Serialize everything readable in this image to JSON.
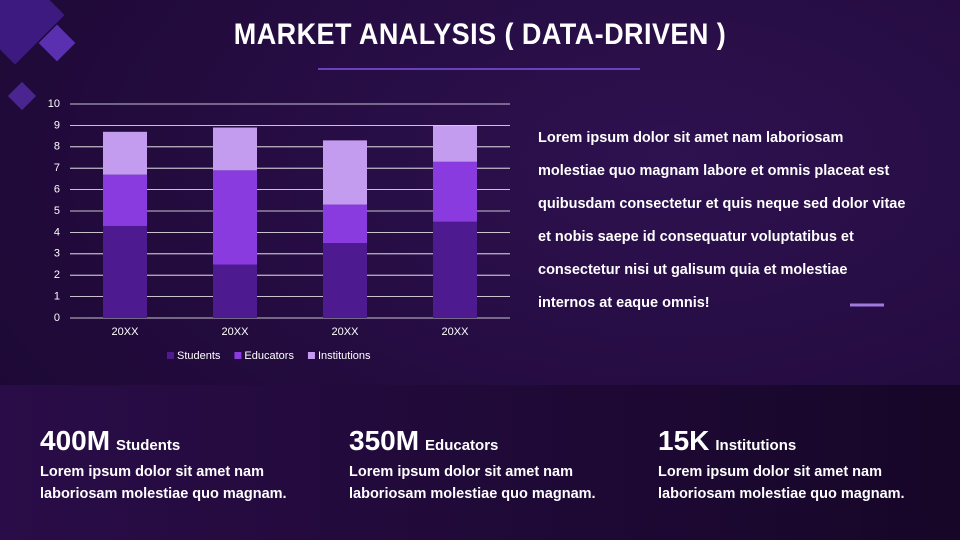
{
  "header": {
    "title": "MARKET ANALYSIS ( DATA-DRIVEN )"
  },
  "chart_data": {
    "type": "stacked_bar",
    "categories": [
      "20XX",
      "20XX",
      "20XX",
      "20XX"
    ],
    "series": [
      {
        "name": "Students",
        "color": "#4e1a8f",
        "values": [
          4.3,
          2.5,
          3.5,
          4.5
        ]
      },
      {
        "name": "Educators",
        "color": "#8a3be0",
        "values": [
          2.4,
          4.4,
          1.8,
          2.8
        ]
      },
      {
        "name": "Institutions",
        "color": "#c39cf0",
        "values": [
          2.0,
          2.0,
          3.0,
          1.7
        ]
      }
    ],
    "ylim": [
      0,
      10
    ],
    "yticks": [
      0,
      1,
      2,
      3,
      4,
      5,
      6,
      7,
      8,
      9,
      10
    ],
    "grid": true,
    "legend": "bottom"
  },
  "body": {
    "text": "Lorem ipsum dolor sit amet nam laboriosam molestiae quo magnam labore et omnis placeat est quibusdam consectetur et quis neque sed dolor vitae et nobis saepe id consequatur voluptatibus et consectetur nisi ut galisum quia et molestiae internos at eaque omnis!"
  },
  "stats": [
    {
      "value": "400M",
      "label": "Students",
      "text": "Lorem ipsum dolor sit amet nam laboriosam molestiae quo magnam."
    },
    {
      "value": "350M",
      "label": "Educators",
      "text": "Lorem ipsum dolor sit amet nam laboriosam molestiae quo magnam."
    },
    {
      "value": "15K",
      "label": "Institutions",
      "text": "Lorem ipsum dolor sit amet nam laboriosam molestiae quo magnam."
    }
  ]
}
